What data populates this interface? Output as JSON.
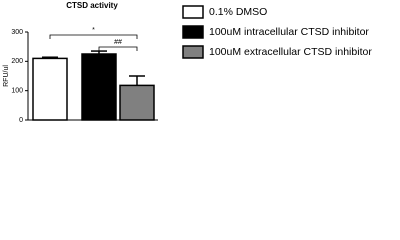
{
  "chart_data": {
    "type": "bar",
    "title": "CTSD activity",
    "y_label": "RFU/ul",
    "ylim": [
      0,
      300
    ],
    "yticks": [
      0,
      100,
      200,
      300
    ],
    "series": [
      {
        "name": "0.1% DMSO",
        "color": "#ffffff",
        "values": [
          210
        ],
        "errors": [
          4
        ]
      },
      {
        "name": "100uM intracellular CTSD inhibitor",
        "color": "#000000",
        "values": [
          225
        ],
        "errors": [
          10
        ]
      },
      {
        "name": "100uM extracellular CTSD inhibitor",
        "color": "#808080",
        "values": [
          118
        ],
        "errors": [
          32
        ]
      }
    ],
    "annotations": [
      "*",
      "##"
    ]
  }
}
